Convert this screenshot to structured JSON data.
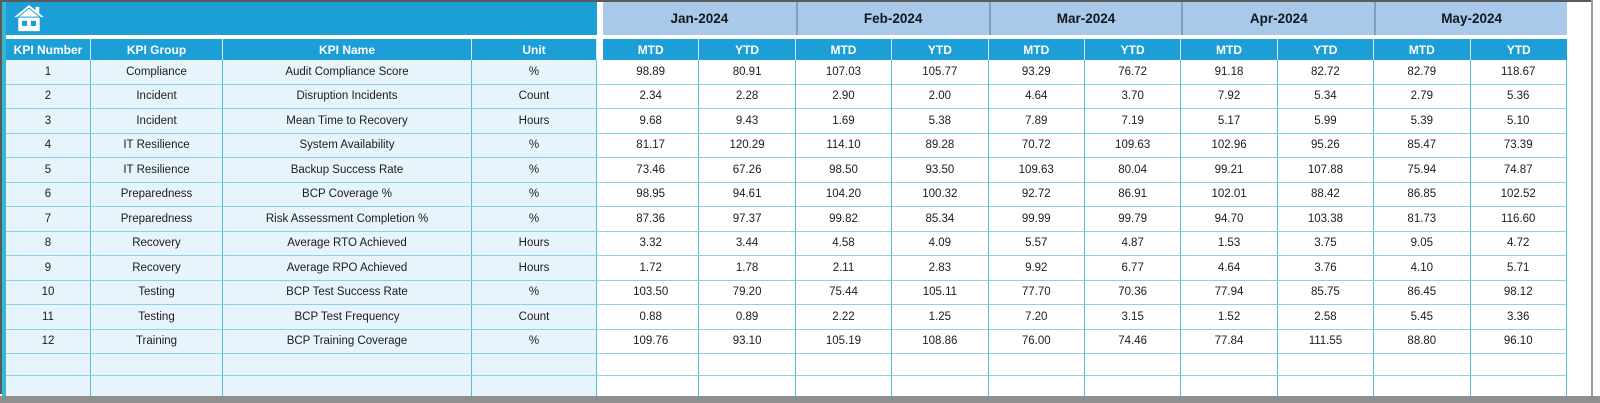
{
  "header": {
    "left_columns": [
      "KPI Number",
      "KPI Group",
      "KPI Name",
      "Unit"
    ],
    "months": [
      "Jan-2024",
      "Feb-2024",
      "Mar-2024",
      "Apr-2024",
      "May-2024"
    ],
    "sub_columns": [
      "MTD",
      "YTD"
    ]
  },
  "home_button": {
    "icon": "home-icon"
  },
  "rows": [
    {
      "number": "1",
      "group": "Compliance",
      "name": "Audit Compliance Score",
      "unit": "%",
      "values": [
        "98.89",
        "80.91",
        "107.03",
        "105.77",
        "93.29",
        "76.72",
        "91.18",
        "82.72",
        "82.79",
        "118.67"
      ]
    },
    {
      "number": "2",
      "group": "Incident",
      "name": "Disruption Incidents",
      "unit": "Count",
      "values": [
        "2.34",
        "2.28",
        "2.90",
        "2.00",
        "4.64",
        "3.70",
        "7.92",
        "5.34",
        "2.79",
        "5.36"
      ]
    },
    {
      "number": "3",
      "group": "Incident",
      "name": "Mean Time to Recovery",
      "unit": "Hours",
      "values": [
        "9.68",
        "9.43",
        "1.69",
        "5.38",
        "7.89",
        "7.19",
        "5.17",
        "5.99",
        "5.39",
        "5.10"
      ]
    },
    {
      "number": "4",
      "group": "IT Resilience",
      "name": "System Availability",
      "unit": "%",
      "values": [
        "81.17",
        "120.29",
        "114.10",
        "89.28",
        "70.72",
        "109.63",
        "102.96",
        "95.26",
        "85.47",
        "73.39"
      ]
    },
    {
      "number": "5",
      "group": "IT Resilience",
      "name": "Backup Success Rate",
      "unit": "%",
      "values": [
        "73.46",
        "67.26",
        "98.50",
        "93.50",
        "109.63",
        "80.04",
        "99.21",
        "107.88",
        "75.94",
        "74.87"
      ]
    },
    {
      "number": "6",
      "group": "Preparedness",
      "name": "BCP Coverage %",
      "unit": "%",
      "values": [
        "98.95",
        "94.61",
        "104.20",
        "100.32",
        "92.72",
        "86.91",
        "102.01",
        "88.42",
        "86.85",
        "102.52"
      ]
    },
    {
      "number": "7",
      "group": "Preparedness",
      "name": "Risk Assessment Completion %",
      "unit": "%",
      "values": [
        "87.36",
        "97.37",
        "99.82",
        "85.34",
        "99.99",
        "99.79",
        "94.70",
        "103.38",
        "81.73",
        "116.60"
      ]
    },
    {
      "number": "8",
      "group": "Recovery",
      "name": "Average RTO Achieved",
      "unit": "Hours",
      "values": [
        "3.32",
        "3.44",
        "4.58",
        "4.09",
        "5.57",
        "4.87",
        "1.53",
        "3.75",
        "9.05",
        "4.72"
      ]
    },
    {
      "number": "9",
      "group": "Recovery",
      "name": "Average RPO Achieved",
      "unit": "Hours",
      "values": [
        "1.72",
        "1.78",
        "2.11",
        "2.83",
        "9.92",
        "6.77",
        "4.64",
        "3.76",
        "4.10",
        "5.71"
      ]
    },
    {
      "number": "10",
      "group": "Testing",
      "name": "BCP Test Success Rate",
      "unit": "%",
      "values": [
        "103.50",
        "79.20",
        "75.44",
        "105.11",
        "77.70",
        "70.36",
        "77.94",
        "85.75",
        "86.45",
        "98.12"
      ]
    },
    {
      "number": "11",
      "group": "Testing",
      "name": "BCP Test Frequency",
      "unit": "Count",
      "values": [
        "0.88",
        "0.89",
        "2.22",
        "1.25",
        "7.20",
        "3.15",
        "1.52",
        "2.58",
        "5.45",
        "3.36"
      ]
    },
    {
      "number": "12",
      "group": "Training",
      "name": "BCP Training Coverage",
      "unit": "%",
      "values": [
        "109.76",
        "93.10",
        "105.19",
        "108.86",
        "76.00",
        "74.46",
        "77.84",
        "111.55",
        "88.80",
        "96.10"
      ]
    }
  ],
  "empty_row_count": 2,
  "colors": {
    "accent_cyan": "#1b9fd6",
    "month_band_blue": "#a8c9e9",
    "month_separator": "#7d9fc6",
    "row_tint_blue": "#e8f4fb",
    "grid_teal": "#55bfd6",
    "window_gray": "#8f8f8f"
  }
}
